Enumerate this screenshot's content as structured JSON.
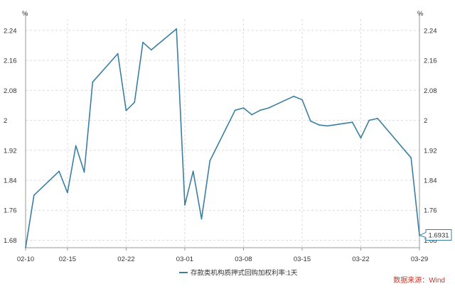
{
  "chart_data": {
    "type": "line",
    "title": "",
    "xlabel": "",
    "ylabel": "%",
    "ylabel_right": "%",
    "ylim": [
      1.66,
      2.27
    ],
    "y_ticks": [
      1.68,
      1.76,
      1.84,
      1.92,
      2,
      2.08,
      2.16,
      2.24
    ],
    "x_ticks": [
      "02-10",
      "02-15",
      "02-22",
      "03-01",
      "03-08",
      "03-15",
      "03-22",
      "03-29"
    ],
    "grid": true,
    "legend_position": "bottom-center",
    "series": [
      {
        "name": "存款类机构质押式回购加权利率:1天",
        "color": "#3a7fa3",
        "x": [
          "02-10",
          "02-11",
          "02-14",
          "02-15",
          "02-16",
          "02-17",
          "02-18",
          "02-21",
          "02-22",
          "02-23",
          "02-24",
          "02-25",
          "02-28",
          "03-01",
          "03-02",
          "03-03",
          "03-04",
          "03-07",
          "03-08",
          "03-09",
          "03-10",
          "03-11",
          "03-14",
          "03-15",
          "03-16",
          "03-17",
          "03-18",
          "03-21",
          "03-22",
          "03-23",
          "03-24",
          "03-28",
          "03-29"
        ],
        "values": [
          1.66,
          1.8,
          1.864,
          1.807,
          1.932,
          1.862,
          2.102,
          2.178,
          2.026,
          2.048,
          2.208,
          2.188,
          2.244,
          1.774,
          1.864,
          1.737,
          1.892,
          2.027,
          2.033,
          2.015,
          2.027,
          2.033,
          2.064,
          2.055,
          1.998,
          1.988,
          1.985,
          1.995,
          1.953,
          2.0,
          2.005,
          1.9,
          1.6931
        ]
      }
    ],
    "callout": {
      "label": "1.6931",
      "value": 1.6931,
      "x": "03-29"
    },
    "source": "数据来源：Wind"
  }
}
